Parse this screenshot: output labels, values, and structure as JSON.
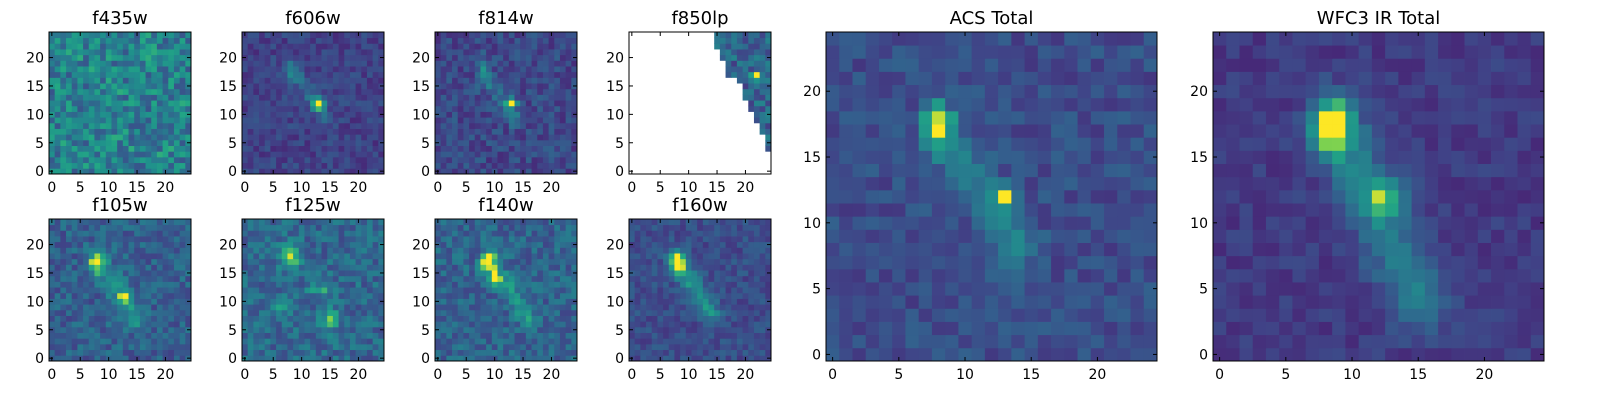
{
  "figure": {
    "colormap": "viridis",
    "background": "#ffffff",
    "frame_color": "#000000"
  },
  "chart_data": [
    {
      "type": "heatmap",
      "title": "f435w",
      "xlabel": "",
      "ylabel": "",
      "xlim": [
        0,
        24
      ],
      "ylim": [
        0,
        24
      ],
      "xticks": [
        0,
        5,
        10,
        15,
        20
      ],
      "yticks": [
        0,
        5,
        10,
        15,
        20
      ],
      "grid": false,
      "image_shape": [
        25,
        25
      ],
      "image_description": "noise-like field, no clear source, mostly teal/green pixels",
      "value_range": [
        0,
        1
      ],
      "mean_level": 0.55,
      "noise_level": 0.22,
      "blank_region": "none",
      "features": []
    },
    {
      "type": "heatmap",
      "title": "f606w",
      "xlabel": "",
      "ylabel": "",
      "xlim": [
        0,
        24
      ],
      "ylim": [
        0,
        24
      ],
      "xticks": [
        0,
        5,
        10,
        15,
        20
      ],
      "yticks": [
        0,
        5,
        10,
        15,
        20
      ],
      "grid": false,
      "image_shape": [
        25,
        25
      ],
      "value_range": [
        0,
        1
      ],
      "mean_level": 0.25,
      "noise_level": 0.1,
      "blank_region": "none",
      "features": [
        {
          "kind": "blob",
          "x": 13,
          "y": 12,
          "sx": 0.7,
          "sy": 0.7,
          "amp": 0.8
        },
        {
          "kind": "blob",
          "x": 8,
          "y": 18,
          "sx": 1.0,
          "sy": 1.4,
          "amp": 0.25
        },
        {
          "kind": "streak",
          "x0": 9,
          "y0": 17,
          "x1": 14,
          "y1": 9,
          "width": 1.0,
          "amp": 0.18
        }
      ]
    },
    {
      "type": "heatmap",
      "title": "f814w",
      "xlabel": "",
      "ylabel": "",
      "xlim": [
        0,
        24
      ],
      "ylim": [
        0,
        24
      ],
      "xticks": [
        0,
        5,
        10,
        15,
        20
      ],
      "yticks": [
        0,
        5,
        10,
        15,
        20
      ],
      "grid": false,
      "image_shape": [
        25,
        25
      ],
      "value_range": [
        0,
        1
      ],
      "mean_level": 0.28,
      "noise_level": 0.12,
      "blank_region": "none",
      "features": [
        {
          "kind": "blob",
          "x": 13,
          "y": 12,
          "sx": 0.6,
          "sy": 0.6,
          "amp": 0.75
        },
        {
          "kind": "blob",
          "x": 8,
          "y": 18,
          "sx": 0.8,
          "sy": 1.4,
          "amp": 0.35
        },
        {
          "kind": "streak",
          "x0": 9,
          "y0": 16,
          "x1": 14,
          "y1": 9,
          "width": 1.0,
          "amp": 0.2
        }
      ]
    },
    {
      "type": "heatmap",
      "title": "f850lp",
      "xlabel": "",
      "ylabel": "",
      "xlim": [
        0,
        24
      ],
      "ylim": [
        0,
        24
      ],
      "xticks": [
        0,
        5,
        10,
        15,
        20
      ],
      "yticks": [
        0,
        5,
        10,
        15,
        20
      ],
      "grid": false,
      "image_shape": [
        25,
        25
      ],
      "value_range": [
        0,
        1
      ],
      "mean_level": 0.4,
      "noise_level": 0.18,
      "blank_region": "lower-left of diagonal (no data)",
      "features": [
        {
          "kind": "blob",
          "x": 22,
          "y": 17,
          "sx": 0.6,
          "sy": 0.6,
          "amp": 0.6
        }
      ]
    },
    {
      "type": "heatmap",
      "title": "f105w",
      "xlabel": "",
      "ylabel": "",
      "xlim": [
        0,
        24
      ],
      "ylim": [
        0,
        24
      ],
      "xticks": [
        0,
        5,
        10,
        15,
        20
      ],
      "yticks": [
        0,
        5,
        10,
        15,
        20
      ],
      "grid": false,
      "image_shape": [
        25,
        25
      ],
      "value_range": [
        0,
        1
      ],
      "mean_level": 0.38,
      "noise_level": 0.14,
      "blank_region": "none",
      "features": [
        {
          "kind": "blob",
          "x": 8,
          "y": 17,
          "sx": 1.0,
          "sy": 1.2,
          "amp": 0.45
        },
        {
          "kind": "blob",
          "x": 13,
          "y": 11,
          "sx": 0.8,
          "sy": 0.8,
          "amp": 0.5
        },
        {
          "kind": "streak",
          "x0": 8,
          "y0": 17,
          "x1": 15,
          "y1": 7,
          "width": 1.3,
          "amp": 0.25
        }
      ]
    },
    {
      "type": "heatmap",
      "title": "f125w",
      "xlabel": "",
      "ylabel": "",
      "xlim": [
        0,
        24
      ],
      "ylim": [
        0,
        24
      ],
      "xticks": [
        0,
        5,
        10,
        15,
        20
      ],
      "yticks": [
        0,
        5,
        10,
        15,
        20
      ],
      "grid": false,
      "image_shape": [
        25,
        25
      ],
      "value_range": [
        0,
        1
      ],
      "mean_level": 0.42,
      "noise_level": 0.15,
      "blank_region": "none",
      "features": [
        {
          "kind": "blob",
          "x": 8,
          "y": 18,
          "sx": 1.3,
          "sy": 1.6,
          "amp": 0.45
        },
        {
          "kind": "blob",
          "x": 13,
          "y": 12,
          "sx": 1.6,
          "sy": 0.6,
          "amp": 0.4
        },
        {
          "kind": "blob",
          "x": 15,
          "y": 7,
          "sx": 1.2,
          "sy": 1.4,
          "amp": 0.35
        },
        {
          "kind": "blob",
          "x": 6,
          "y": 9,
          "sx": 1.0,
          "sy": 1.0,
          "amp": 0.3
        }
      ]
    },
    {
      "type": "heatmap",
      "title": "f140w",
      "xlabel": "",
      "ylabel": "",
      "xlim": [
        0,
        24
      ],
      "ylim": [
        0,
        24
      ],
      "xticks": [
        0,
        5,
        10,
        15,
        20
      ],
      "yticks": [
        0,
        5,
        10,
        15,
        20
      ],
      "grid": false,
      "image_shape": [
        25,
        25
      ],
      "value_range": [
        0,
        1
      ],
      "mean_level": 0.4,
      "noise_level": 0.14,
      "blank_region": "none",
      "features": [
        {
          "kind": "blob",
          "x": 9,
          "y": 17,
          "sx": 1.0,
          "sy": 1.4,
          "amp": 0.45
        },
        {
          "kind": "blob",
          "x": 10,
          "y": 14,
          "sx": 0.6,
          "sy": 0.6,
          "amp": 0.45
        },
        {
          "kind": "streak",
          "x0": 9,
          "y0": 17,
          "x1": 16,
          "y1": 7,
          "width": 1.1,
          "amp": 0.3
        }
      ]
    },
    {
      "type": "heatmap",
      "title": "f160w",
      "xlabel": "",
      "ylabel": "",
      "xlim": [
        0,
        24
      ],
      "ylim": [
        0,
        24
      ],
      "xticks": [
        0,
        5,
        10,
        15,
        20
      ],
      "yticks": [
        0,
        5,
        10,
        15,
        20
      ],
      "grid": false,
      "image_shape": [
        25,
        25
      ],
      "value_range": [
        0,
        1
      ],
      "mean_level": 0.3,
      "noise_level": 0.1,
      "blank_region": "none",
      "features": [
        {
          "kind": "blob",
          "x": 8,
          "y": 17,
          "sx": 0.8,
          "sy": 1.4,
          "amp": 0.7
        },
        {
          "kind": "streak",
          "x0": 8,
          "y0": 17,
          "x1": 14,
          "y1": 8,
          "width": 1.2,
          "amp": 0.35
        }
      ]
    },
    {
      "type": "heatmap",
      "title": "ACS Total",
      "xlabel": "",
      "ylabel": "",
      "xlim": [
        0,
        24
      ],
      "ylim": [
        0,
        24
      ],
      "xticks": [
        0,
        5,
        10,
        15,
        20
      ],
      "yticks": [
        0,
        5,
        10,
        15,
        20
      ],
      "grid": false,
      "image_shape": [
        25,
        25
      ],
      "value_range": [
        0,
        1
      ],
      "mean_level": 0.3,
      "noise_level": 0.1,
      "blank_region": "none",
      "features": [
        {
          "kind": "blob",
          "x": 8,
          "y": 17.5,
          "sx": 0.7,
          "sy": 1.2,
          "amp": 0.6
        },
        {
          "kind": "blob",
          "x": 13,
          "y": 12,
          "sx": 0.5,
          "sy": 0.5,
          "amp": 0.75
        },
        {
          "kind": "streak",
          "x0": 8,
          "y0": 17,
          "x1": 14,
          "y1": 8,
          "width": 1.1,
          "amp": 0.25
        }
      ]
    },
    {
      "type": "heatmap",
      "title": "WFC3 IR Total",
      "xlabel": "",
      "ylabel": "",
      "xlim": [
        0,
        24
      ],
      "ylim": [
        0,
        24
      ],
      "xticks": [
        0,
        5,
        10,
        15,
        20
      ],
      "yticks": [
        0,
        5,
        10,
        15,
        20
      ],
      "grid": false,
      "image_shape": [
        25,
        25
      ],
      "value_range": [
        0,
        1
      ],
      "mean_level": 0.22,
      "noise_level": 0.07,
      "blank_region": "none",
      "features": [
        {
          "kind": "blob",
          "x": 8.5,
          "y": 17.5,
          "sx": 1.0,
          "sy": 1.5,
          "amp": 0.75
        },
        {
          "kind": "blob",
          "x": 12.5,
          "y": 12,
          "sx": 1.0,
          "sy": 1.0,
          "amp": 0.45
        },
        {
          "kind": "streak",
          "x0": 9,
          "y0": 17,
          "x1": 15,
          "y1": 4,
          "width": 1.6,
          "amp": 0.3
        }
      ]
    }
  ]
}
